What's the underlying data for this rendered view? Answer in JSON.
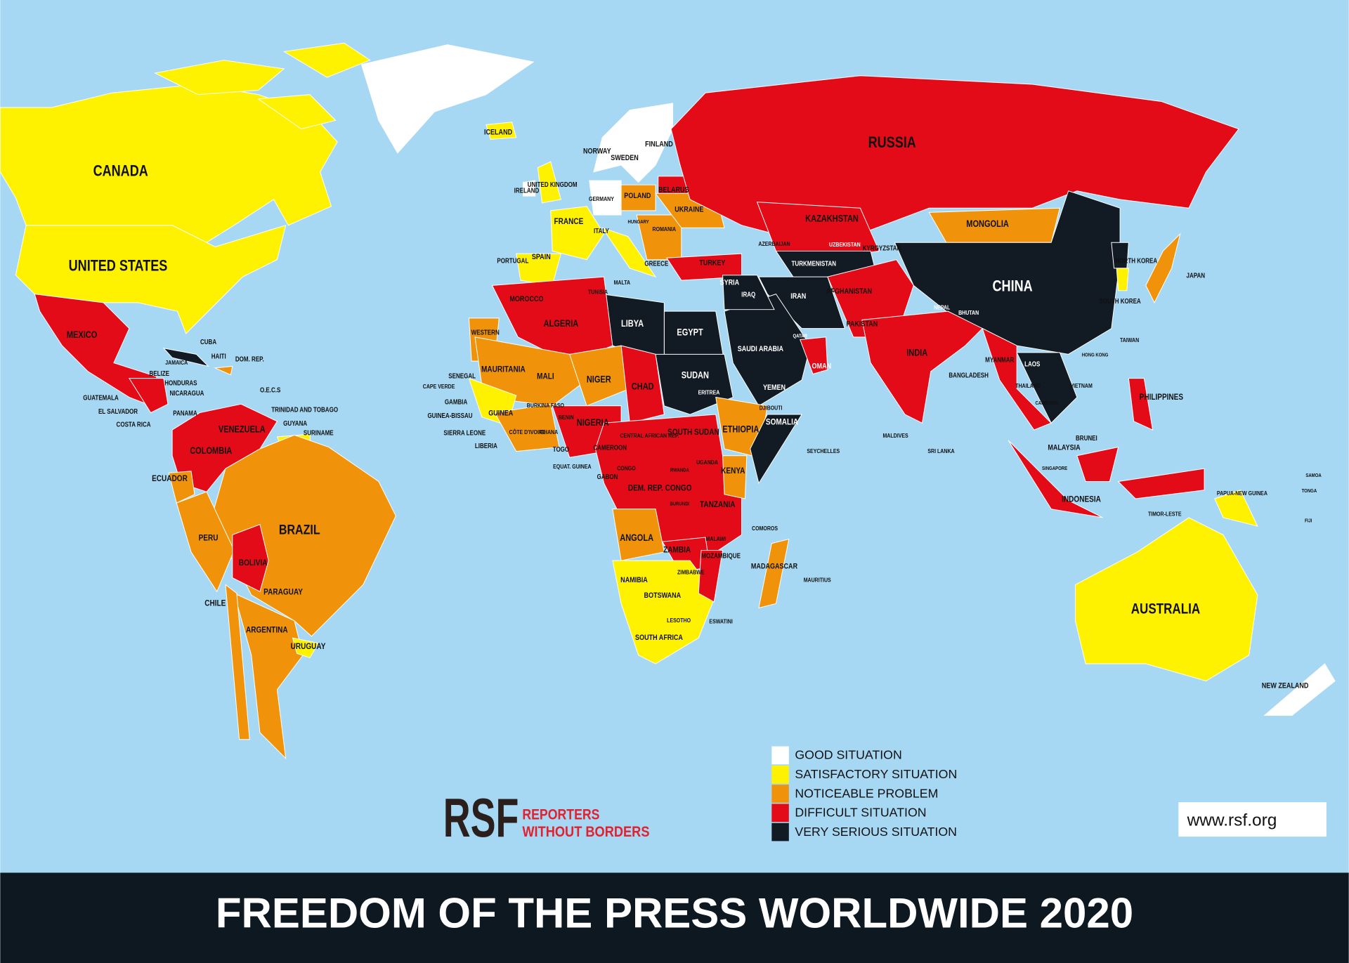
{
  "title": "FREEDOM OF THE PRESS WORLDWIDE 2020",
  "legend": [
    {
      "label": "GOOD SITUATION",
      "color": "#ffffff"
    },
    {
      "label": "SATISFACTORY SITUATION",
      "color": "#fff200"
    },
    {
      "label": "NOTICEABLE PROBLEM",
      "color": "#f0930a"
    },
    {
      "label": "DIFFICULT SITUATION",
      "color": "#e30b17"
    },
    {
      "label": "VERY SERIOUS SITUATION",
      "color": "#121a24"
    }
  ],
  "logo": {
    "mark": "RSF",
    "lines": [
      "REPORTERS",
      "WITHOUT BORDERS"
    ]
  },
  "url": "www.rsf.org",
  "labels": [
    "CANADA",
    "UNITED STATES",
    "MEXICO",
    "CUBA",
    "HAITI",
    "DOM. REP.",
    "JAMAICA",
    "BELIZE",
    "HONDURAS",
    "NICARAGUA",
    "GUATEMALA",
    "EL SALVADOR",
    "PANAMA",
    "COSTA RICA",
    "O.E.C.S",
    "TRINIDAD AND TOBAGO",
    "GUYANA",
    "SURINAME",
    "VENEZUELA",
    "COLOMBIA",
    "ECUADOR",
    "PERU",
    "BRAZIL",
    "BOLIVIA",
    "PARAGUAY",
    "CHILE",
    "ARGENTINA",
    "URUGUAY",
    "ICELAND",
    "NORWAY",
    "SWEDEN",
    "FINLAND",
    "UNITED KINGDOM",
    "IRELAND",
    "GERMANY",
    "POLAND",
    "BELARUS",
    "UKRAINE",
    "FRANCE",
    "SPAIN",
    "PORTUGAL",
    "ITALY",
    "HUNGARY",
    "ROMANIA",
    "GREECE",
    "MALTA",
    "TURKEY",
    "RUSSIA",
    "KAZAKHSTAN",
    "MONGOLIA",
    "AZERBAIJAN",
    "UZBEKISTAN",
    "KYRGYZSTAN",
    "TURKMENISTAN",
    "CHINA",
    "NORTH KOREA",
    "SOUTH KOREA",
    "JAPAN",
    "TAIWAN",
    "HONG KONG",
    "SYRIA",
    "IRAQ",
    "IRAN",
    "AFGHANISTAN",
    "PAKISTAN",
    "INDIA",
    "NEPAL",
    "BHUTAN",
    "BANGLADESH",
    "MYANMAR",
    "LAOS",
    "THAILAND",
    "CAMBODIA",
    "VIETNAM",
    "PHILIPPINES",
    "BRUNEI",
    "MALAYSIA",
    "SINGAPORE",
    "INDONESIA",
    "TIMOR-LESTE",
    "PAPUA-NEW GUINEA",
    "AUSTRALIA",
    "NEW ZEALAND",
    "SAMOA",
    "TONGA",
    "FIJI",
    "SRI LANKA",
    "MALDIVES",
    "SEYCHELLES",
    "QATAR",
    "SAUDI ARABIA",
    "OMAN",
    "YEMEN",
    "DJIBOUTI",
    "SOMALIA",
    "ETHIOPIA",
    "ERITREA",
    "EGYPT",
    "LIBYA",
    "SUDAN",
    "SOUTH SUDAN",
    "TUNISIA",
    "ALGERIA",
    "MOROCCO",
    "WESTERN",
    "MAURITANIA",
    "MALI",
    "NIGER",
    "CHAD",
    "SENEGAL",
    "CAPE VERDE",
    "GAMBIA",
    "GUINEA-BISSAU",
    "GUINEA",
    "SIERRA LEONE",
    "LIBERIA",
    "CÔTE D'IVOIRE",
    "BURKINA FASO",
    "GHANA",
    "TOGO",
    "BENIN",
    "NIGERIA",
    "CAMEROON",
    "CENTRAL AFRICAN REP.",
    "EQUAT. GUINEA",
    "GABON",
    "CONGO",
    "DEM. REP. CONGO",
    "RWANDA",
    "BURUNDI",
    "UGANDA",
    "KENYA",
    "TANZANIA",
    "ANGOLA",
    "ZAMBIA",
    "MALAWI",
    "MOZAMBIQUE",
    "ZIMBABWE",
    "NAMIBIA",
    "BOTSWANA",
    "MADAGASCAR",
    "COMOROS",
    "MAURITIUS",
    "SOUTH AFRICA",
    "LESOTHO",
    "ESWATINI"
  ]
}
